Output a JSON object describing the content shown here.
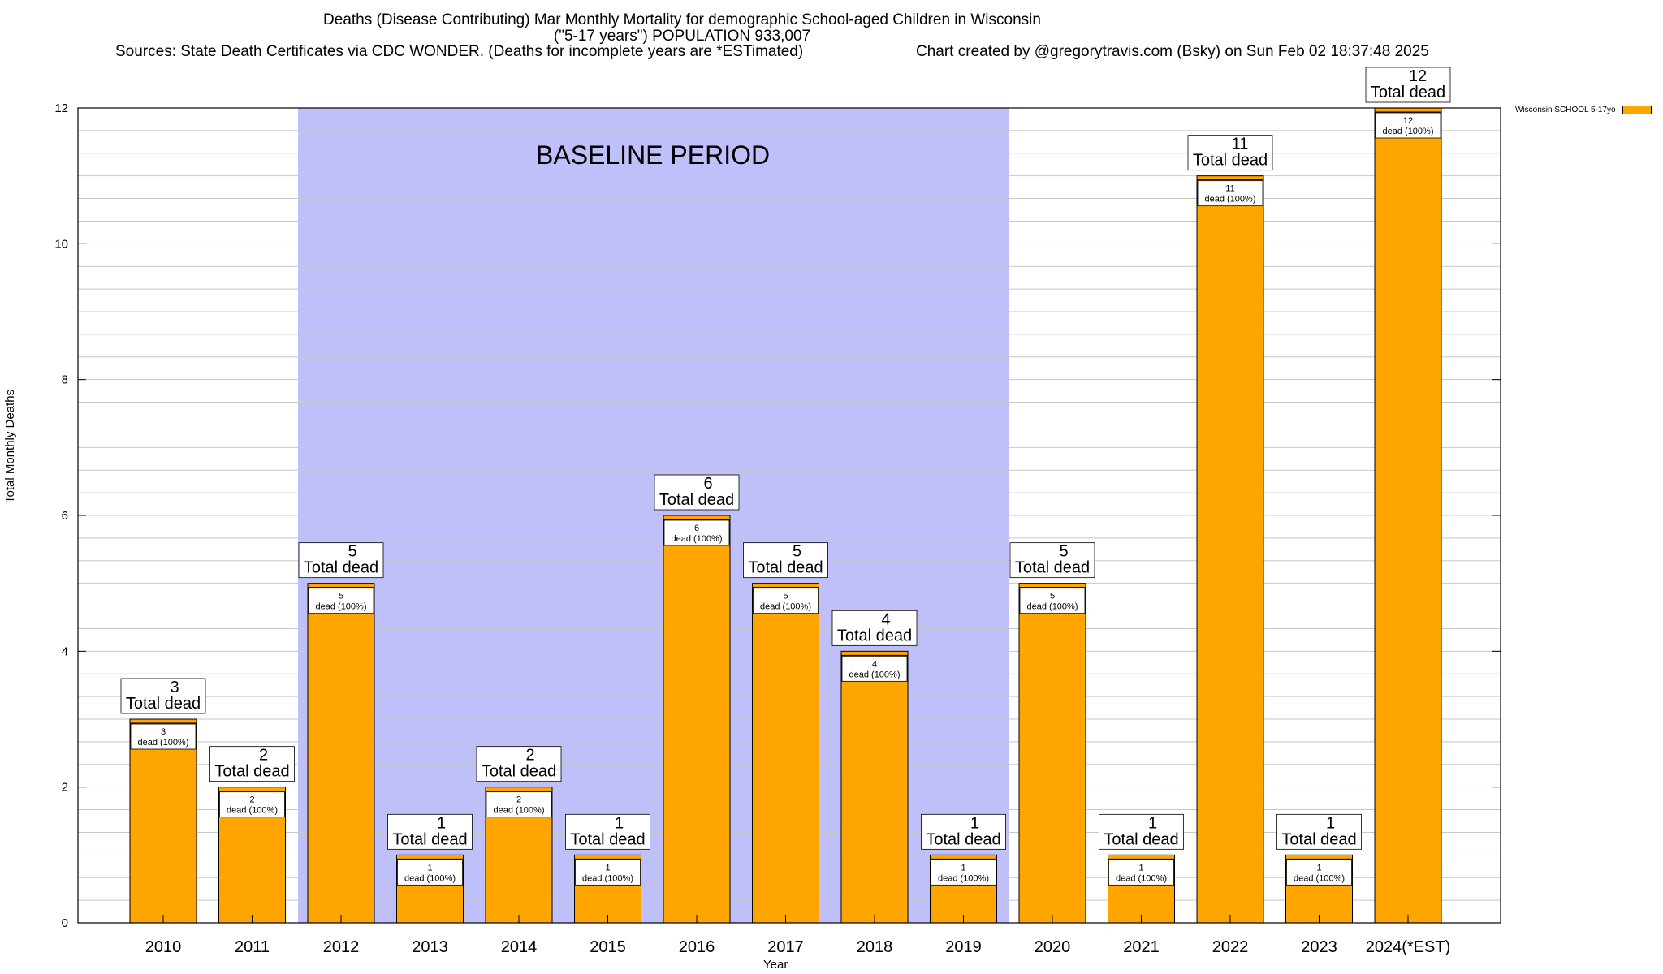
{
  "title_line1": "Deaths (Disease Contributing) Mar Monthly Mortality for demographic School-aged Children in Wisconsin",
  "title_line2": "(\"5-17 years\") POPULATION 933,007",
  "sources": "Sources: State Death Certificates via CDC WONDER. (Deaths for incomplete years are *ESTimated)",
  "credit": "Chart created by @gregorytravis.com (Bsky) on Sun Feb 02 18:37:48 2025",
  "colors": {
    "bar": "#ffa500",
    "baseline": "#bfbffa"
  },
  "chart_data": {
    "type": "bar",
    "categories": [
      "2010",
      "2011",
      "2012",
      "2013",
      "2014",
      "2015",
      "2016",
      "2017",
      "2018",
      "2019",
      "2020",
      "2021",
      "2022",
      "2023",
      "2024(*EST)"
    ],
    "series": [
      {
        "name": "Wisconsin SCHOOL 5-17yo",
        "values": [
          3,
          2,
          5,
          1,
          2,
          1,
          6,
          5,
          4,
          1,
          5,
          1,
          11,
          1,
          12
        ]
      }
    ],
    "xlabel": "Year",
    "ylabel": "Total Monthly Deaths",
    "ylim": [
      0,
      12
    ],
    "yticks": [
      0,
      2,
      4,
      6,
      8,
      10,
      12
    ],
    "grid": true,
    "legend": "top-right, outside plot",
    "baseline_period": {
      "label": "BASELINE PERIOD",
      "from": "2012",
      "to": "2019"
    },
    "label_total": "Total dead",
    "label_inner": "dead (100%)"
  }
}
